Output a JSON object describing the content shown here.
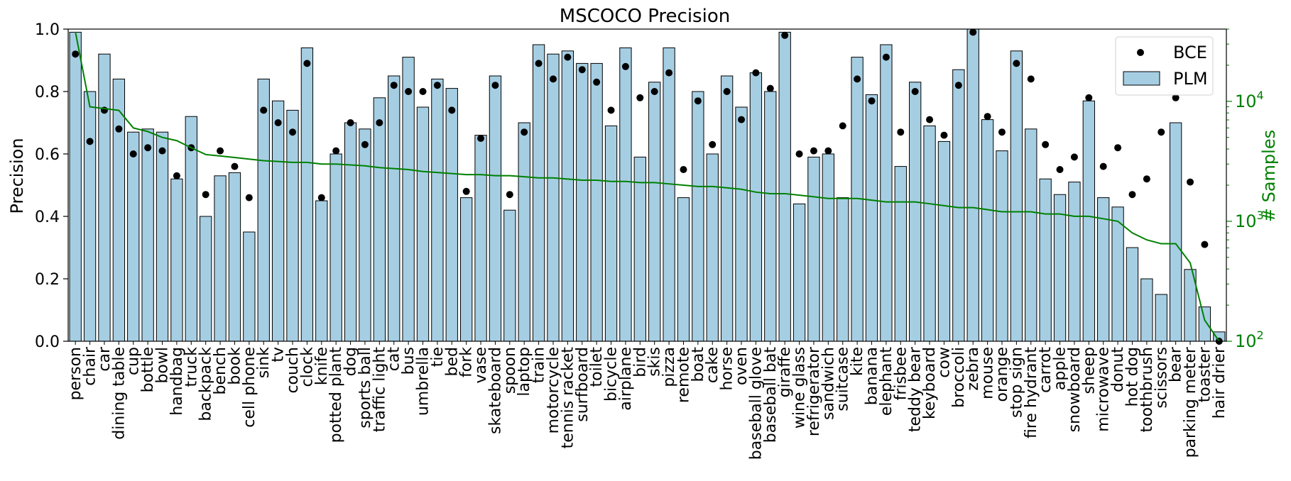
{
  "chart_data": {
    "type": "bar",
    "title": "MSCOCO Precision",
    "xlabel": "",
    "ylabel": "Precision",
    "ylim": [
      0,
      1.0
    ],
    "y_ticks": [
      "0.0",
      "0.2",
      "0.4",
      "0.6",
      "0.8",
      "1.0"
    ],
    "y2label": "# Samples",
    "y2_scale": "log",
    "y2lim": [
      100,
      40000
    ],
    "y2_ticks": [
      {
        "base": "10",
        "exp": "2",
        "value": 100
      },
      {
        "base": "10",
        "exp": "3",
        "value": 1000
      },
      {
        "base": "10",
        "exp": "4",
        "value": 10000
      }
    ],
    "legend": {
      "bce": "BCE",
      "plm": "PLM",
      "position": "top-right"
    },
    "colors": {
      "bar_fill": "#a6cee3",
      "bar_edge": "#000000",
      "dots": "#000000",
      "line": "#008000",
      "right_axis": "#008000"
    },
    "categories": [
      "person",
      "chair",
      "car",
      "dining table",
      "cup",
      "bottle",
      "bowl",
      "handbag",
      "truck",
      "backpack",
      "bench",
      "book",
      "cell phone",
      "sink",
      "tv",
      "couch",
      "clock",
      "knife",
      "potted plant",
      "dog",
      "sports ball",
      "traffic light",
      "cat",
      "bus",
      "umbrella",
      "tie",
      "bed",
      "fork",
      "vase",
      "skateboard",
      "spoon",
      "laptop",
      "train",
      "motorcycle",
      "tennis racket",
      "surfboard",
      "toilet",
      "bicycle",
      "airplane",
      "bird",
      "skis",
      "pizza",
      "remote",
      "boat",
      "cake",
      "horse",
      "oven",
      "baseball glove",
      "baseball bat",
      "giraffe",
      "wine glass",
      "refrigerator",
      "sandwich",
      "suitcase",
      "kite",
      "banana",
      "elephant",
      "frisbee",
      "teddy bear",
      "keyboard",
      "cow",
      "broccoli",
      "zebra",
      "mouse",
      "orange",
      "stop sign",
      "fire hydrant",
      "carrot",
      "apple",
      "snowboard",
      "sheep",
      "microwave",
      "donut",
      "hot dog",
      "toothbrush",
      "scissors",
      "bear",
      "parking meter",
      "toaster",
      "hair drier"
    ],
    "series": [
      {
        "name": "PLM",
        "type": "bar",
        "values": [
          0.99,
          0.8,
          0.92,
          0.84,
          0.67,
          0.68,
          0.67,
          0.52,
          0.72,
          0.4,
          0.53,
          0.54,
          0.35,
          0.84,
          0.77,
          0.74,
          0.94,
          0.45,
          0.6,
          0.7,
          0.68,
          0.78,
          0.85,
          0.91,
          0.75,
          0.84,
          0.81,
          0.46,
          0.66,
          0.85,
          0.42,
          0.7,
          0.95,
          0.92,
          0.93,
          0.89,
          0.89,
          0.69,
          0.94,
          0.59,
          0.83,
          0.94,
          0.46,
          0.8,
          0.6,
          0.85,
          0.75,
          0.86,
          0.8,
          0.99,
          0.44,
          0.59,
          0.6,
          0.46,
          0.91,
          0.79,
          0.95,
          0.56,
          0.83,
          0.69,
          0.64,
          0.87,
          1.0,
          0.71,
          0.61,
          0.93,
          0.68,
          0.52,
          0.47,
          0.51,
          0.77,
          0.46,
          0.43,
          0.3,
          0.2,
          0.15,
          0.7,
          0.23,
          0.11,
          0.03
        ]
      },
      {
        "name": "BCE",
        "type": "scatter",
        "values": [
          0.92,
          0.64,
          0.74,
          0.68,
          0.6,
          0.62,
          0.61,
          0.53,
          0.62,
          0.47,
          0.61,
          0.56,
          0.46,
          0.74,
          0.7,
          0.67,
          0.89,
          0.46,
          0.61,
          0.7,
          0.63,
          0.7,
          0.82,
          0.8,
          0.8,
          0.82,
          0.74,
          0.48,
          0.65,
          0.82,
          0.47,
          0.67,
          0.89,
          0.84,
          0.91,
          0.87,
          0.83,
          0.74,
          0.88,
          0.78,
          0.8,
          0.86,
          0.55,
          0.77,
          0.63,
          0.8,
          0.71,
          0.86,
          0.81,
          0.98,
          0.6,
          0.61,
          0.61,
          0.69,
          0.84,
          0.77,
          0.91,
          0.67,
          0.8,
          0.71,
          0.66,
          0.82,
          0.99,
          0.72,
          0.67,
          0.89,
          0.84,
          0.63,
          0.55,
          0.59,
          0.78,
          0.56,
          0.62,
          0.47,
          0.52,
          0.67,
          0.78,
          0.51,
          0.31,
          0.0
        ]
      },
      {
        "name": "# Samples",
        "type": "line",
        "axis": "right",
        "values": [
          38000,
          9000,
          8700,
          8400,
          6000,
          5600,
          5000,
          4700,
          4100,
          3600,
          3500,
          3400,
          3300,
          3200,
          3150,
          3100,
          3100,
          3000,
          3000,
          2950,
          2900,
          2800,
          2750,
          2700,
          2600,
          2550,
          2500,
          2450,
          2450,
          2400,
          2400,
          2350,
          2300,
          2300,
          2250,
          2200,
          2200,
          2150,
          2150,
          2100,
          2100,
          2050,
          2000,
          1950,
          1950,
          1900,
          1850,
          1750,
          1700,
          1700,
          1650,
          1600,
          1550,
          1550,
          1550,
          1500,
          1450,
          1450,
          1450,
          1400,
          1350,
          1300,
          1300,
          1250,
          1200,
          1200,
          1200,
          1150,
          1150,
          1100,
          1100,
          1050,
          1000,
          800,
          700,
          650,
          650,
          450,
          150,
          100
        ]
      }
    ]
  }
}
